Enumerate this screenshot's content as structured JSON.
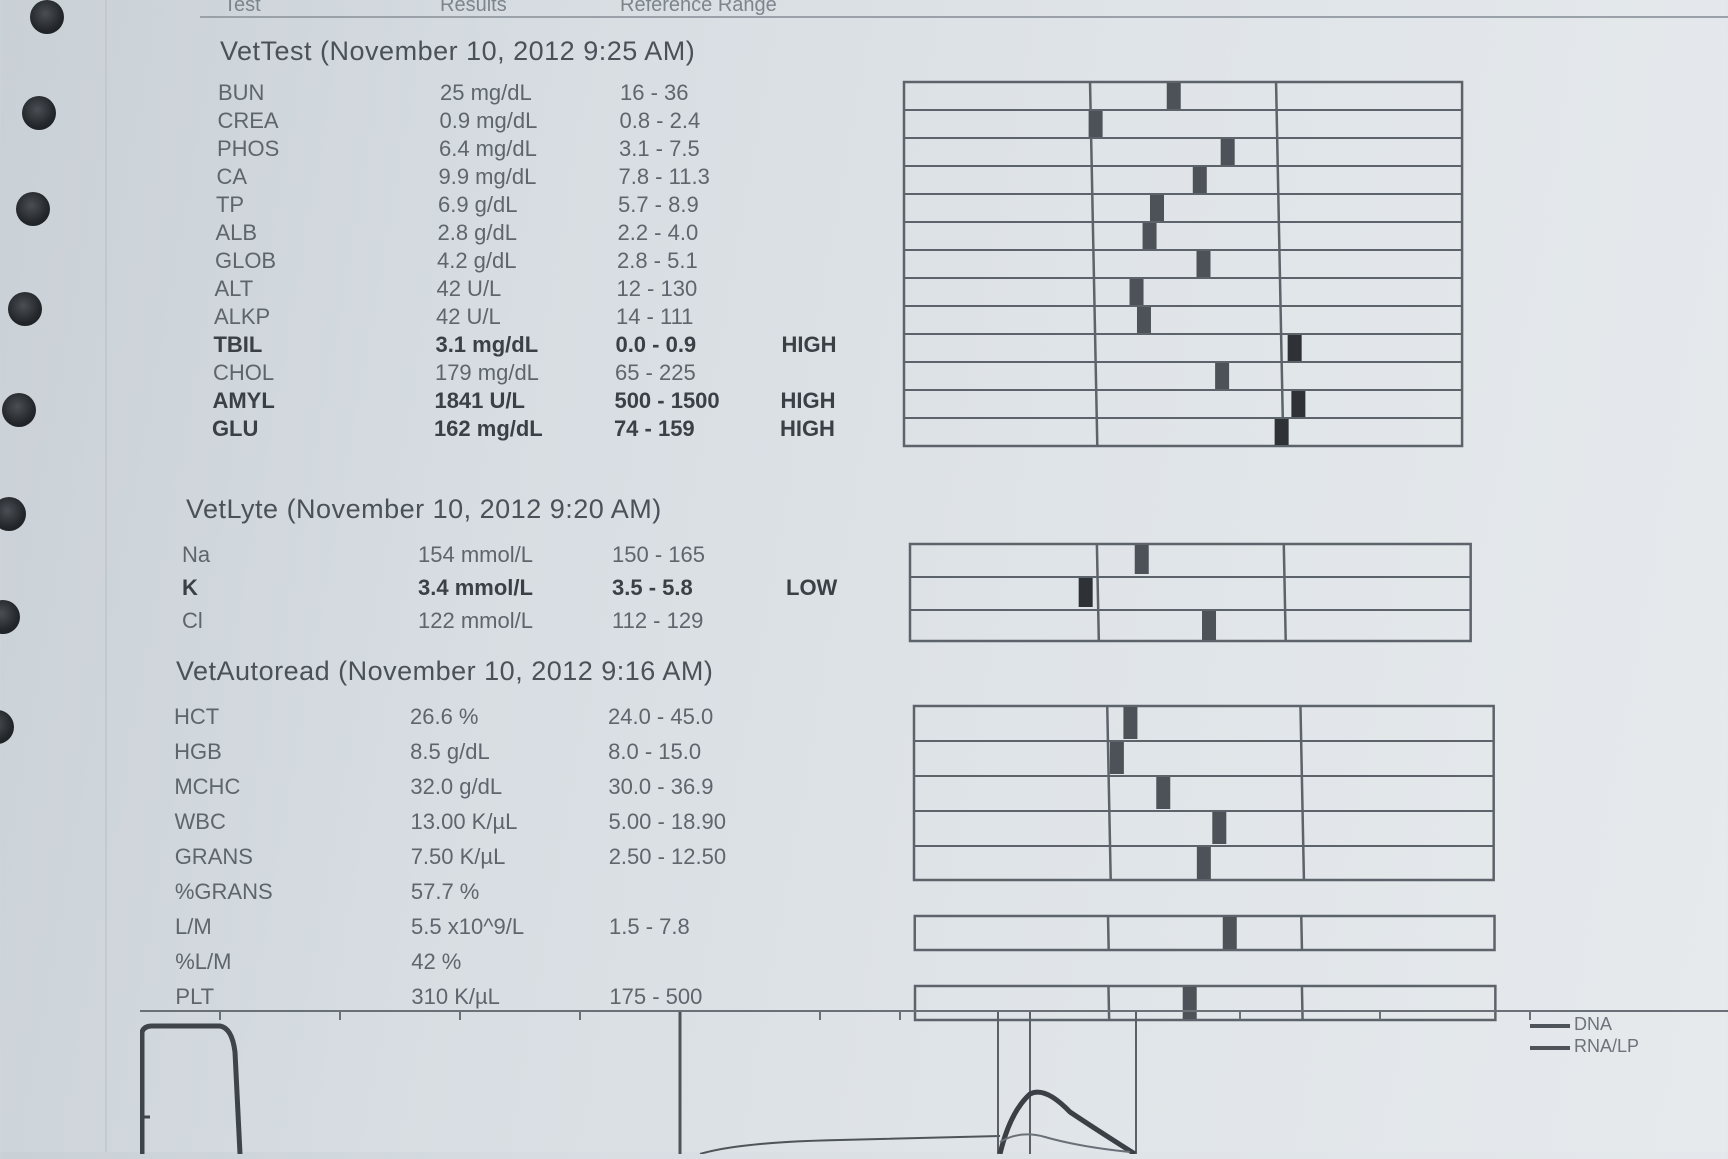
{
  "header": {
    "col_test": "Test",
    "col_results": "Results",
    "col_reference": "Reference Range"
  },
  "sections": [
    {
      "title": "VetTest (November 10, 2012 9:25 AM)",
      "rows": [
        {
          "name": "BUN",
          "result": "25 mg/dL",
          "range": "16 - 36",
          "flag": "",
          "marker_fraction": 0.45
        },
        {
          "name": "CREA",
          "result": "0.9 mg/dL",
          "range": "0.8 - 2.4",
          "flag": "",
          "marker_fraction": 0.03
        },
        {
          "name": "PHOS",
          "result": "6.4 mg/dL",
          "range": "3.1 - 7.5",
          "flag": "",
          "marker_fraction": 0.74
        },
        {
          "name": "CA",
          "result": "9.9 mg/dL",
          "range": "7.8 - 11.3",
          "flag": "",
          "marker_fraction": 0.59
        },
        {
          "name": "TP",
          "result": "6.9 g/dL",
          "range": "5.7 - 8.9",
          "flag": "",
          "marker_fraction": 0.36
        },
        {
          "name": "ALB",
          "result": "2.8 g/dL",
          "range": "2.2 - 4.0",
          "flag": "",
          "marker_fraction": 0.32
        },
        {
          "name": "GLOB",
          "result": "4.2 g/dL",
          "range": "2.8 - 5.1",
          "flag": "",
          "marker_fraction": 0.61
        },
        {
          "name": "ALT",
          "result": "42 U/L",
          "range": "12 - 130",
          "flag": "",
          "marker_fraction": 0.25
        },
        {
          "name": "ALKP",
          "result": "42 U/L",
          "range": "14 - 111",
          "flag": "",
          "marker_fraction": 0.29
        },
        {
          "name": "TBIL",
          "result": "3.1 mg/dL",
          "range": "0.0 - 0.9",
          "flag": "HIGH",
          "marker_fraction": 1.1
        },
        {
          "name": "CHOL",
          "result": "179 mg/dL",
          "range": "65 - 225",
          "flag": "",
          "marker_fraction": 0.71
        },
        {
          "name": "AMYL",
          "result": "1841 U/L",
          "range": "500 - 1500",
          "flag": "HIGH",
          "marker_fraction": 1.12
        },
        {
          "name": "GLU",
          "result": "162 mg/dL",
          "range": "74 - 159",
          "flag": "HIGH",
          "marker_fraction": 1.03
        }
      ]
    },
    {
      "title": "VetLyte (November 10, 2012 9:20 AM)",
      "rows": [
        {
          "name": "Na",
          "result": "154 mmol/L",
          "range": "150 - 165",
          "flag": "",
          "marker_fraction": 0.24
        },
        {
          "name": "K",
          "result": "3.4 mmol/L",
          "range": "3.5 - 5.8",
          "flag": "LOW",
          "marker_fraction": -0.06
        },
        {
          "name": "Cl",
          "result": "122 mmol/L",
          "range": "112 - 129",
          "flag": "",
          "marker_fraction": 0.6
        }
      ]
    },
    {
      "title": "VetAutoread (November 10, 2012 9:16 AM)",
      "rows": [
        {
          "name": "HCT",
          "result": "26.6 %",
          "range": "24.0 - 45.0",
          "flag": "",
          "marker_fraction": 0.12
        },
        {
          "name": "HGB",
          "result": "8.5 g/dL",
          "range": "8.0 - 15.0",
          "flag": "",
          "marker_fraction": 0.05
        },
        {
          "name": "MCHC",
          "result": "32.0 g/dL",
          "range": "30.0 - 36.9",
          "flag": "",
          "marker_fraction": 0.29
        },
        {
          "name": "WBC",
          "result": "13.00 K/µL",
          "range": "5.00 - 18.90",
          "flag": "",
          "marker_fraction": 0.58
        },
        {
          "name": "GRANS",
          "result": "7.50 K/µL",
          "range": "2.50 - 12.50",
          "flag": "",
          "marker_fraction": 0.5
        },
        {
          "name": "%GRANS",
          "result": "57.7 %",
          "range": "",
          "flag": "",
          "marker_fraction": null
        },
        {
          "name": "L/M",
          "result": "5.5 x10^9/L",
          "range": "1.5 - 7.8",
          "flag": "",
          "marker_fraction": 0.63
        },
        {
          "name": "%L/M",
          "result": "42 %",
          "range": "",
          "flag": "",
          "marker_fraction": null
        },
        {
          "name": "PLT",
          "result": "310 K/µL",
          "range": "175 - 500",
          "flag": "",
          "marker_fraction": 0.42
        }
      ]
    }
  ],
  "graph_legend": [
    "DNA",
    "RNA/LP"
  ]
}
